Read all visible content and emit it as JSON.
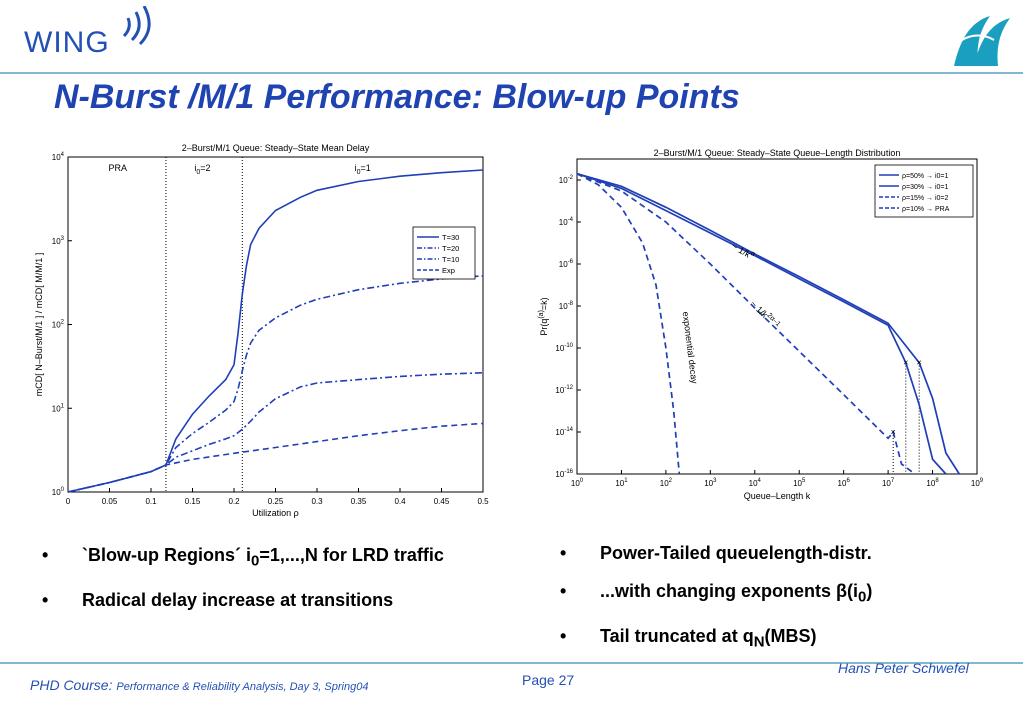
{
  "header": {
    "logo_text": "WING",
    "title": "N-Burst /M/1 Performance: Blow-up Points"
  },
  "colors": {
    "accent": "#1f43b0",
    "series": "#1f3fb8",
    "rule": "#7fb8cf"
  },
  "chart_data": [
    {
      "type": "line",
      "title": "2–Burst/M/1 Queue: Steady–State Mean Delay",
      "xlabel": "Utilization ρ",
      "ylabel": "mCD[ N–Burst/M/1 ] / mCD[ M/M/1 ]",
      "xlim": [
        0,
        0.5
      ],
      "ylim": [
        1,
        10000
      ],
      "yscale": "log",
      "xticks": [
        "0",
        "0.05",
        "0.1",
        "0.15",
        "0.2",
        "0.25",
        "0.3",
        "0.35",
        "0.4",
        "0.45",
        "0.5"
      ],
      "yticks": [
        "10^0",
        "10^1",
        "10^2",
        "10^3",
        "10^4"
      ],
      "region_labels": [
        {
          "text": "PRA",
          "x": 0.06
        },
        {
          "text": "i",
          "sub": "0",
          "rest": "=2",
          "x": 0.162
        },
        {
          "text": "i",
          "sub": "0",
          "rest": "=1",
          "x": 0.355
        }
      ],
      "vlines": [
        0.118,
        0.21
      ],
      "legend": [
        "T=30",
        "T=20",
        "T=10",
        "Exp"
      ],
      "legend_position": "upper-right",
      "series": [
        {
          "name": "T=30",
          "style": "solid",
          "x": [
            0,
            0.05,
            0.1,
            0.118,
            0.13,
            0.15,
            0.17,
            0.19,
            0.2,
            0.205,
            0.21,
            0.215,
            0.22,
            0.23,
            0.25,
            0.28,
            0.3,
            0.35,
            0.4,
            0.45,
            0.5
          ],
          "y": [
            1.0,
            1.3,
            1.75,
            2.1,
            4.3,
            8.5,
            14,
            22,
            33,
            80,
            230,
            500,
            900,
            1400,
            2300,
            3300,
            4000,
            5100,
            5900,
            6500,
            7000
          ]
        },
        {
          "name": "T=20",
          "style": "dashdot",
          "x": [
            0,
            0.05,
            0.1,
            0.118,
            0.13,
            0.15,
            0.17,
            0.19,
            0.2,
            0.205,
            0.21,
            0.215,
            0.22,
            0.23,
            0.25,
            0.28,
            0.3,
            0.35,
            0.4,
            0.45,
            0.5
          ],
          "y": [
            1.0,
            1.3,
            1.75,
            2.1,
            3.4,
            5.0,
            6.8,
            9.5,
            12,
            17,
            28,
            43,
            60,
            85,
            120,
            170,
            200,
            260,
            310,
            350,
            380
          ]
        },
        {
          "name": "T=10",
          "style": "dashdot",
          "x": [
            0,
            0.05,
            0.1,
            0.118,
            0.13,
            0.15,
            0.17,
            0.19,
            0.2,
            0.21,
            0.22,
            0.23,
            0.25,
            0.28,
            0.3,
            0.35,
            0.4,
            0.45,
            0.5
          ],
          "y": [
            1.0,
            1.3,
            1.75,
            2.1,
            2.6,
            3.1,
            3.7,
            4.3,
            4.7,
            5.6,
            7.0,
            9.0,
            13,
            18,
            20,
            22,
            24,
            25.5,
            26.5
          ]
        },
        {
          "name": "Exp",
          "style": "dashed",
          "x": [
            0,
            0.05,
            0.1,
            0.118,
            0.15,
            0.2,
            0.25,
            0.3,
            0.35,
            0.4,
            0.45,
            0.5
          ],
          "y": [
            1.0,
            1.3,
            1.75,
            2.1,
            2.45,
            2.9,
            3.4,
            4.0,
            4.7,
            5.4,
            6.1,
            6.6
          ]
        }
      ]
    },
    {
      "type": "line",
      "title": "2–Burst/M/1 Queue: Steady–State Queue–Length Distribution",
      "xlabel": "Queue–Length k",
      "ylabel": "Pr(q",
      "ylabel_sup": "(a)",
      "ylabel_tail": "=k)",
      "xscale": "log",
      "yscale": "log",
      "xlim": [
        1,
        1000000000
      ],
      "ylim": [
        1e-16,
        0.1
      ],
      "xticks": [
        "10^0",
        "10^1",
        "10^2",
        "10^3",
        "10^4",
        "10^5",
        "10^6",
        "10^7",
        "10^8",
        "10^9"
      ],
      "yticks": [
        "10^-2",
        "10^-4",
        "10^-6",
        "10^-8",
        "10^-10",
        "10^-12",
        "10^-14",
        "10^-16"
      ],
      "legend": [
        "ρ=50% → i0=1",
        "ρ=30% → i0=1",
        "ρ=15% → i0=2",
        "ρ=10% → PRA"
      ],
      "legend_position": "upper-right",
      "annotations": [
        {
          "text": "~ 1/k",
          "sup": "α",
          "x": 5000,
          "y": 3e-06,
          "rotate": 30
        },
        {
          "text": "~ 1/k",
          "sup": "2α–1",
          "x": 15000,
          "y": 3e-09,
          "rotate": 45
        },
        {
          "text": "exponential decay",
          "x": 300,
          "y": 1e-10,
          "rotate": 83
        }
      ],
      "vlines": [
        25000000.0,
        50000000.0,
        13000000.0
      ],
      "markers": [
        {
          "x": 25000000.0,
          "y": 2e-11
        },
        {
          "x": 50000000.0,
          "y": 2e-11
        },
        {
          "x": 13000000.0,
          "y": 1e-14
        }
      ],
      "series": [
        {
          "name": "ρ=50% → i0=1",
          "style": "solid",
          "x": [
            1,
            10,
            100,
            1000,
            10000,
            100000,
            1000000,
            10000000,
            50000000,
            100000000,
            200000000,
            400000000
          ],
          "y": [
            0.02,
            0.005,
            0.0005,
            4e-05,
            3e-06,
            2.5e-07,
            2e-08,
            1.5e-09,
            2e-11,
            4e-13,
            1e-15,
            1e-16
          ]
        },
        {
          "name": "ρ=30% → i0=1",
          "style": "solid",
          "x": [
            1,
            10,
            100,
            1000,
            10000,
            100000,
            1000000,
            10000000,
            25000000,
            50000000,
            100000000,
            200000000
          ],
          "y": [
            0.02,
            0.004,
            0.00035,
            3e-05,
            2.5e-06,
            2e-07,
            1.6e-08,
            1.2e-09,
            2e-11,
            2e-13,
            5e-16,
            1e-16
          ]
        },
        {
          "name": "ρ=15% → i0=2",
          "style": "dashed",
          "x": [
            1,
            10,
            100,
            1000,
            10000,
            100000,
            1000000,
            10000000,
            13000000,
            20000000,
            40000000
          ],
          "y": [
            0.02,
            0.003,
            0.0001,
            1e-06,
            8e-09,
            7e-11,
            6e-13,
            5e-15,
            1e-14,
            3e-16,
            1e-16
          ]
        },
        {
          "name": "ρ=10% → PRA",
          "style": "dashed",
          "x": [
            1,
            3,
            10,
            30,
            60,
            100,
            150,
            200
          ],
          "y": [
            0.02,
            0.006,
            0.0005,
            1e-05,
            1e-07,
            1e-10,
            1e-13,
            1e-16
          ]
        }
      ]
    }
  ],
  "bullets_left": [
    {
      "pre": "`Blow-up Regions´ i",
      "sub": "0",
      "post": "=1,...,N for LRD traffic"
    },
    {
      "pre": "Radical delay increase at transitions",
      "sub": "",
      "post": ""
    }
  ],
  "bullets_right": [
    {
      "pre": "Power-Tailed queuelength-distr.",
      "sub": "",
      "post": ""
    },
    {
      "pre": "...with changing exponents β(i",
      "sub": "0",
      "post": ")"
    },
    {
      "pre": "Tail truncated at q",
      "sub": "N",
      "post": "(MBS)"
    }
  ],
  "bullet_symbol": "•",
  "footer": {
    "course_label": "PHD Course:",
    "course_detail": "Performance & Reliability Analysis, Day 3, Spring04",
    "page": "Page 27",
    "author": "Hans Peter Schwefel"
  }
}
